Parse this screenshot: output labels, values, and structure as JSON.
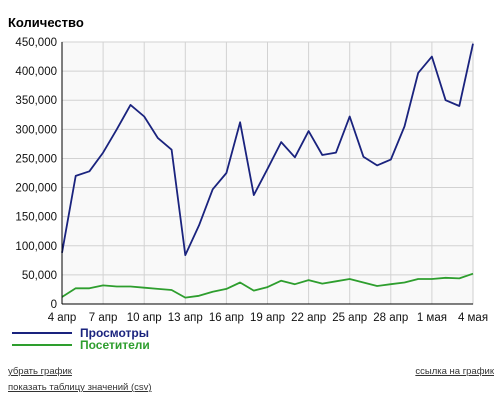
{
  "chart_data": {
    "type": "line",
    "title": "",
    "ylabel": "Количество",
    "ylim": [
      0,
      450000
    ],
    "y_ticks": [
      "0",
      "50,000",
      "100,000",
      "150,000",
      "200,000",
      "250,000",
      "300,000",
      "350,000",
      "400,000",
      "450,000"
    ],
    "x_tick_labels": [
      "4 апр",
      "7 апр",
      "10 апр",
      "13 апр",
      "16 апр",
      "19 апр",
      "22 апр",
      "25 апр",
      "28 апр",
      "1 мая",
      "4 мая"
    ],
    "x_days": [
      1,
      2,
      3,
      4,
      5,
      6,
      7,
      8,
      9,
      10,
      11,
      12,
      13,
      14,
      15,
      16,
      17,
      18,
      19,
      20,
      21,
      22,
      23,
      24,
      25,
      26,
      27,
      28,
      29,
      30,
      31
    ],
    "grid": true,
    "legend": "bottom-left",
    "series": [
      {
        "name": "Просмотры",
        "color": "#1a237e",
        "values": [
          88000,
          220000,
          228000,
          260000,
          300000,
          342000,
          322000,
          285000,
          265000,
          84000,
          135000,
          197000,
          225000,
          312000,
          187000,
          232000,
          278000,
          252000,
          297000,
          256000,
          260000,
          322000,
          253000,
          238000,
          248000,
          305000,
          397000,
          425000,
          350000,
          340000,
          447000
        ]
      },
      {
        "name": "Посетители",
        "color": "#2e9e2e",
        "values": [
          12000,
          27000,
          27000,
          32000,
          30000,
          30000,
          28000,
          26000,
          24000,
          11000,
          14000,
          21000,
          26000,
          37000,
          23000,
          29000,
          40000,
          34000,
          41000,
          35000,
          39000,
          43000,
          37000,
          31000,
          34000,
          37000,
          43000,
          43000,
          45000,
          44000,
          52000
        ]
      }
    ]
  },
  "links": {
    "remove_chart": "убрать график",
    "show_table": "показать таблицу значений (csv)",
    "chart_link": "ссылка на график"
  }
}
